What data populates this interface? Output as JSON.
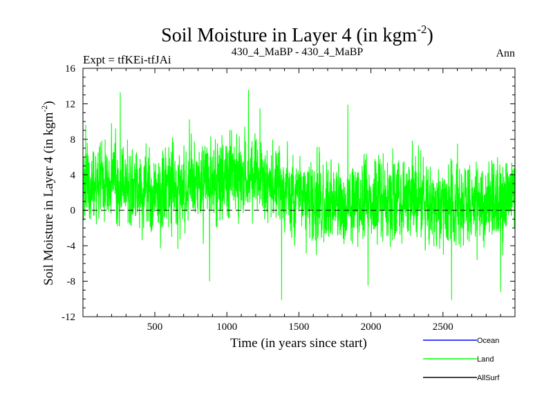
{
  "chart_data": {
    "type": "line",
    "title": "Soil Moisture in Layer 4 (in kgm",
    "title_sup": "-2",
    "title_close": ")",
    "subtitle_left": "Expt = tfKEi-tfJAi",
    "subtitle_center": "430_4_MaBP - 430_4_MaBP",
    "subtitle_right": "Ann",
    "xlabel": "Time (in years since start)",
    "ylabel": "Soil Moisture in Layer 4 (in kgm",
    "ylabel_sup": "-2",
    "ylabel_close": ")",
    "xlim": [
      1,
      3000
    ],
    "ylim": [
      -12,
      16
    ],
    "xticks": [
      500,
      1000,
      1500,
      2000,
      2500
    ],
    "yticks": [
      -12,
      -8,
      -4,
      0,
      4,
      8,
      12,
      16
    ],
    "zero_line": true,
    "legend_position": "bottom-right",
    "series": [
      {
        "name": "Ocean",
        "color": "#0000ff",
        "values": []
      },
      {
        "name": "Land",
        "color": "#00ff00",
        "mean_level": 2.0,
        "noise_range": [
          -10,
          13.6
        ],
        "anchors": [
          {
            "x": 260,
            "y": 13.3
          },
          {
            "x": 1150,
            "y": 13.6
          },
          {
            "x": 1380,
            "y": -10.1
          },
          {
            "x": 2560,
            "y": -10.1
          },
          {
            "x": 880,
            "y": -8.0
          },
          {
            "x": 1980,
            "y": -8.5
          },
          {
            "x": 2900,
            "y": -9.2
          },
          {
            "x": 1840,
            "y": 11.9
          },
          {
            "x": 1230,
            "y": 11.5
          },
          {
            "x": 20,
            "y": 9.6
          }
        ]
      },
      {
        "name": "AllSurf",
        "color": "#000000",
        "values": []
      }
    ]
  }
}
